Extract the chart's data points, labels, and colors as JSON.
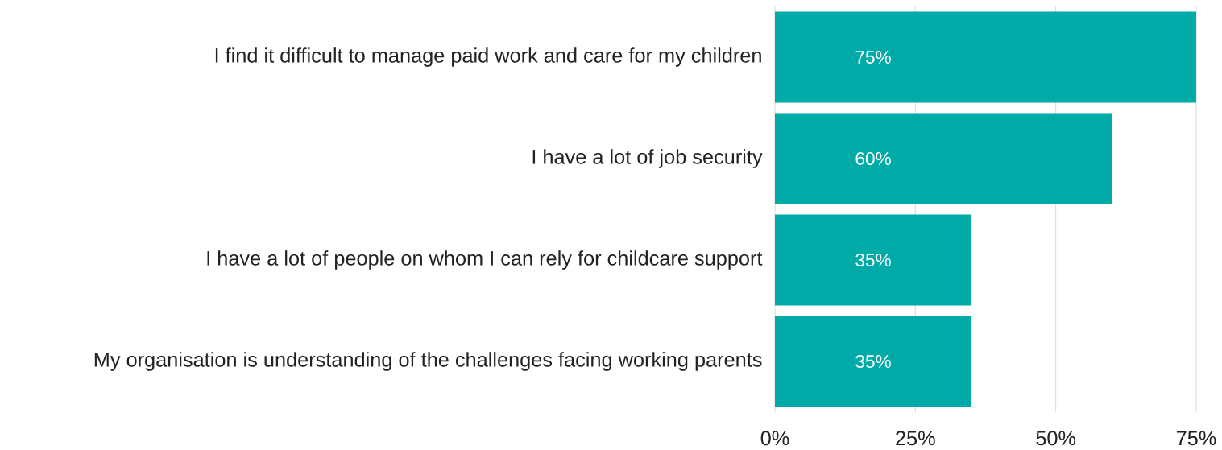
{
  "chart_data": {
    "type": "bar",
    "orientation": "horizontal",
    "categories": [
      "I find it difficult to manage paid work and care for my children",
      "I have a lot of job security",
      "I have a lot of people on whom I can rely for childcare support",
      "My organisation is understanding of the challenges facing working parents"
    ],
    "values": [
      75,
      60,
      35,
      35
    ],
    "value_labels": [
      "75%",
      "60%",
      "35%",
      "35%"
    ],
    "color": "#00aaa6",
    "xlim": [
      0,
      75
    ],
    "xticks": [
      {
        "value": 0,
        "label": "0%"
      },
      {
        "value": 25,
        "label": "25%"
      },
      {
        "value": 50,
        "label": "50%"
      },
      {
        "value": 75,
        "label": "75%"
      }
    ],
    "grid": "x"
  }
}
